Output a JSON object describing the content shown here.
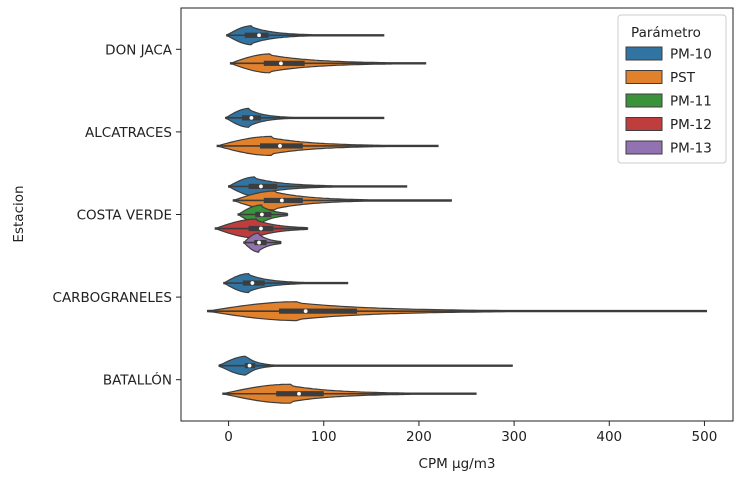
{
  "chart_data": {
    "type": "violin",
    "orientation": "horizontal",
    "xlabel": "CPM µg/m3",
    "ylabel": "Estacion",
    "xlim": [
      -50,
      530
    ],
    "xticks": [
      0,
      100,
      200,
      300,
      400,
      500
    ],
    "grid": false,
    "legend": {
      "title": "Parámetro",
      "placement": "top-right",
      "entries": [
        {
          "name": "PM-10",
          "color": "#3274a1"
        },
        {
          "name": "PST",
          "color": "#e1812c"
        },
        {
          "name": "PM-11",
          "color": "#3a923a"
        },
        {
          "name": "PM-12",
          "color": "#c03d3e"
        },
        {
          "name": "PM-13",
          "color": "#9372b2"
        }
      ]
    },
    "categories": [
      "DON JACA",
      "ALCATRACES",
      "COSTA VERDE",
      "CARBOGRANELES",
      "BATALLÓN"
    ],
    "violins": [
      {
        "station": "DON JACA",
        "series": "PM-10",
        "min": -2,
        "q1": 17,
        "median": 32,
        "q3": 42,
        "max": 163,
        "peak": 25
      },
      {
        "station": "DON JACA",
        "series": "PST",
        "min": 2,
        "q1": 37,
        "median": 55,
        "q3": 80,
        "max": 207,
        "peak": 45
      },
      {
        "station": "ALCATRACES",
        "series": "PM-10",
        "min": -3,
        "q1": 14,
        "median": 24,
        "q3": 34,
        "max": 163,
        "peak": 22
      },
      {
        "station": "ALCATRACES",
        "series": "PST",
        "min": -12,
        "q1": 33,
        "median": 54,
        "q3": 78,
        "max": 220,
        "peak": 45
      },
      {
        "station": "COSTA VERDE",
        "series": "PM-10",
        "min": 0,
        "q1": 21,
        "median": 34,
        "q3": 51,
        "max": 187,
        "peak": 28
      },
      {
        "station": "COSTA VERDE",
        "series": "PST",
        "min": 5,
        "q1": 37,
        "median": 56,
        "q3": 78,
        "max": 234,
        "peak": 50
      },
      {
        "station": "COSTA VERDE",
        "series": "PM-11",
        "min": 10,
        "q1": 28,
        "median": 35,
        "q3": 45,
        "max": 62,
        "peak": 35
      },
      {
        "station": "COSTA VERDE",
        "series": "PM-12",
        "min": -14,
        "q1": 21,
        "median": 34,
        "q3": 47,
        "max": 83,
        "peak": 30
      },
      {
        "station": "COSTA VERDE",
        "series": "PM-13",
        "min": 16,
        "q1": 27,
        "median": 32,
        "q3": 40,
        "max": 55,
        "peak": 32
      },
      {
        "station": "CARBOGRANELES",
        "series": "PM-10",
        "min": -5,
        "q1": 15,
        "median": 25,
        "q3": 38,
        "max": 125,
        "peak": 22
      },
      {
        "station": "CARBOGRANELES",
        "series": "PST",
        "min": -22,
        "q1": 53,
        "median": 81,
        "q3": 135,
        "max": 502,
        "peak": 75
      },
      {
        "station": "BATALLÓN",
        "series": "PM-10",
        "min": -10,
        "q1": 17,
        "median": 22,
        "q3": 28,
        "max": 298,
        "peak": 20
      },
      {
        "station": "BATALLÓN",
        "series": "PST",
        "min": -6,
        "q1": 50,
        "median": 74,
        "q3": 100,
        "max": 260,
        "peak": 65
      }
    ]
  }
}
